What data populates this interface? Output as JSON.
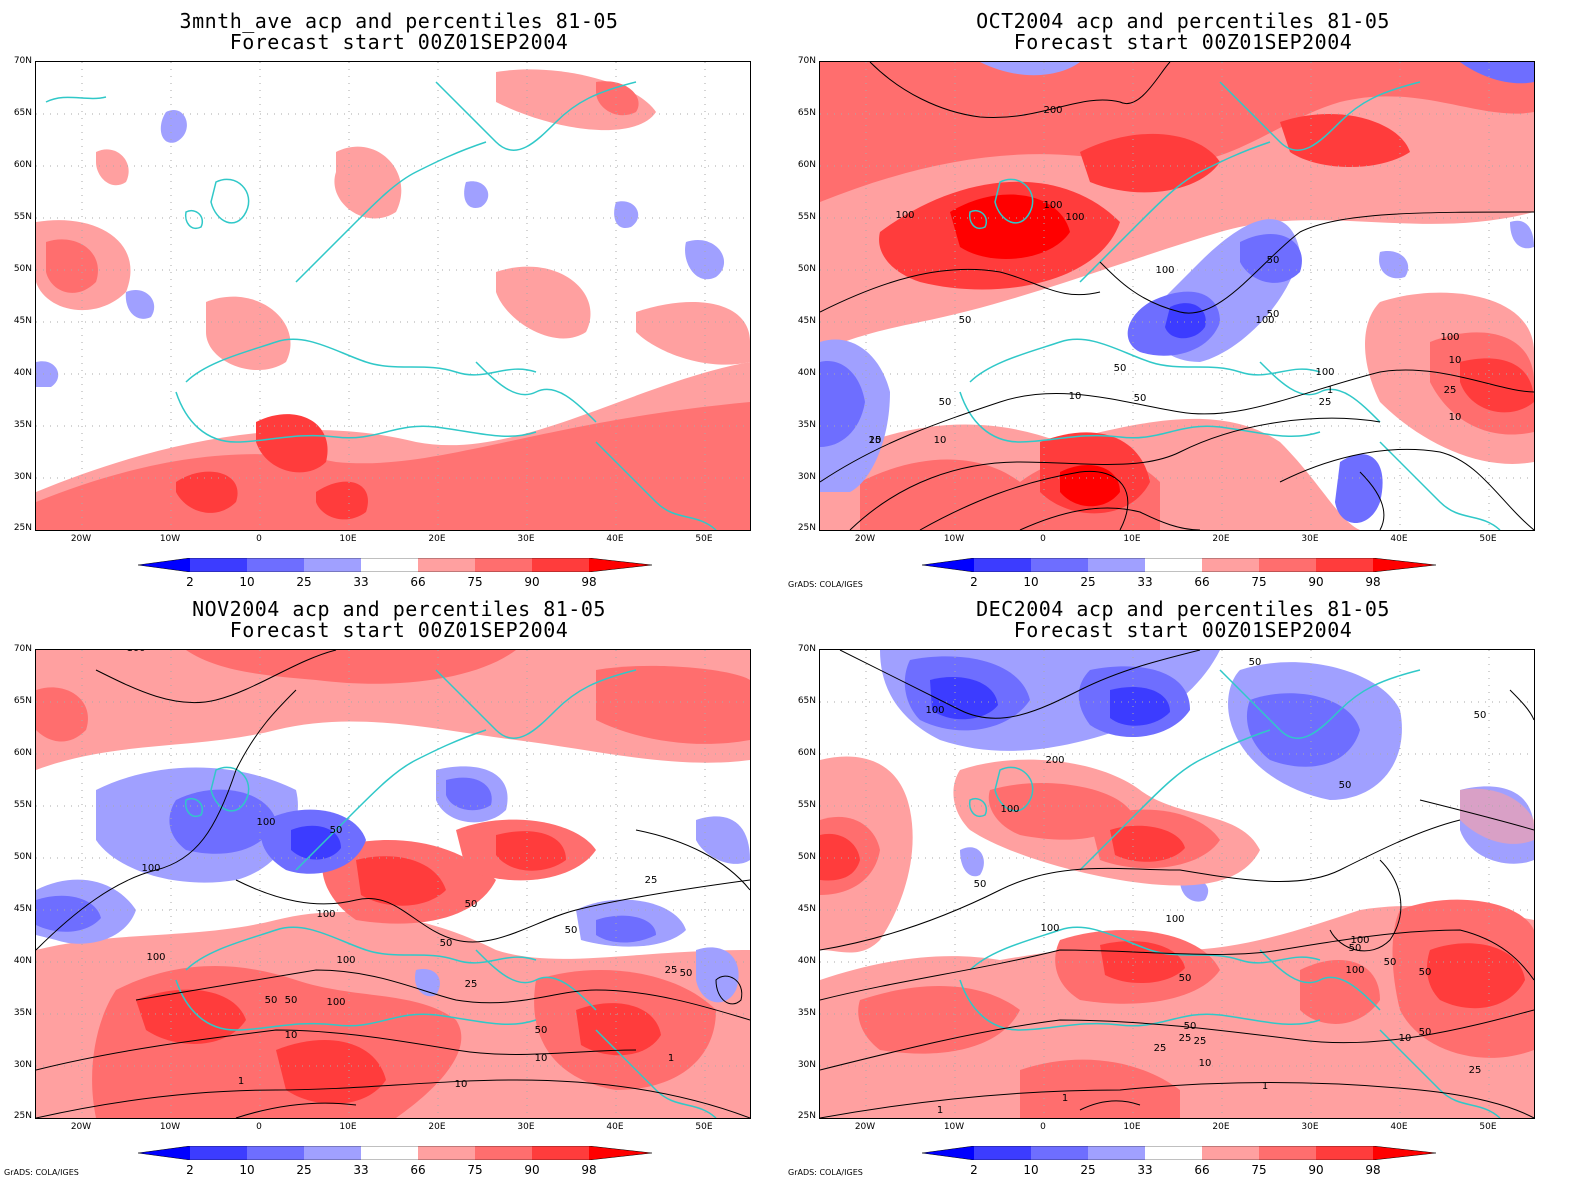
{
  "panels": [
    {
      "title_line1": "3mnth_ave acp and percentiles 81-05",
      "title_line2": "Forecast start 00Z01SEP2004",
      "credit": "",
      "contour_labels": []
    },
    {
      "title_line1": "OCT2004 acp and percentiles 81-05",
      "title_line2": "Forecast start 00Z01SEP2004",
      "credit": "GrADS: COLA/IGES",
      "contour_labels": [
        "100",
        "100",
        "200",
        "100",
        "100",
        "100",
        "50",
        "50",
        "100",
        "50",
        "50",
        "100",
        "50",
        "25",
        "50",
        "25",
        "10",
        "10",
        "10",
        "10",
        "25",
        "10",
        "1",
        "100"
      ]
    },
    {
      "title_line1": "NOV2004 acp and percentiles 81-05",
      "title_line2": "Forecast start 00Z01SEP2004",
      "credit": "GrADS: COLA/IGES",
      "contour_labels": [
        "100",
        "100",
        "100",
        "50",
        "100",
        "100",
        "100",
        "50",
        "50",
        "25",
        "100",
        "50",
        "50",
        "50",
        "10",
        "25",
        "50",
        "10",
        "1",
        "1",
        "10",
        "25",
        "50"
      ]
    },
    {
      "title_line1": "DEC2004 acp and percentiles 81-05",
      "title_line2": "Forecast start 00Z01SEP2004",
      "credit": "GrADS: COLA/IGES",
      "contour_labels": [
        "50",
        "100",
        "200",
        "100",
        "50",
        "50",
        "100",
        "100",
        "50",
        "100",
        "50",
        "50",
        "25",
        "100",
        "50",
        "50",
        "50",
        "10",
        "25",
        "10",
        "25",
        "1",
        "1",
        "1",
        "50",
        "25"
      ]
    }
  ],
  "axes": {
    "lat_labels": [
      "70N",
      "65N",
      "60N",
      "55N",
      "50N",
      "45N",
      "40N",
      "35N",
      "30N",
      "25N"
    ],
    "lon_labels": [
      "20W",
      "10W",
      "0",
      "10E",
      "20E",
      "30E",
      "40E",
      "50E"
    ]
  },
  "legend": {
    "values": [
      "2",
      "10",
      "25",
      "33",
      "66",
      "75",
      "90",
      "98"
    ],
    "colors": [
      "#0000ff",
      "#3c3cff",
      "#6e6eff",
      "#a0a0ff",
      "#ffffff",
      "#ffa0a0",
      "#ff6e6e",
      "#ff3c3c",
      "#ff0000"
    ]
  },
  "colors": {
    "coastline": "#30c8c8",
    "contour": "#000000",
    "grid": "#aaaaaa",
    "light_red": "#ffa0a0",
    "mid_red": "#ff6e6e",
    "dark_red": "#ff3c3c",
    "deep_red": "#ff0000",
    "light_blue": "#a0a0ff",
    "mid_blue": "#6e6eff",
    "dark_blue": "#3c3cff"
  }
}
